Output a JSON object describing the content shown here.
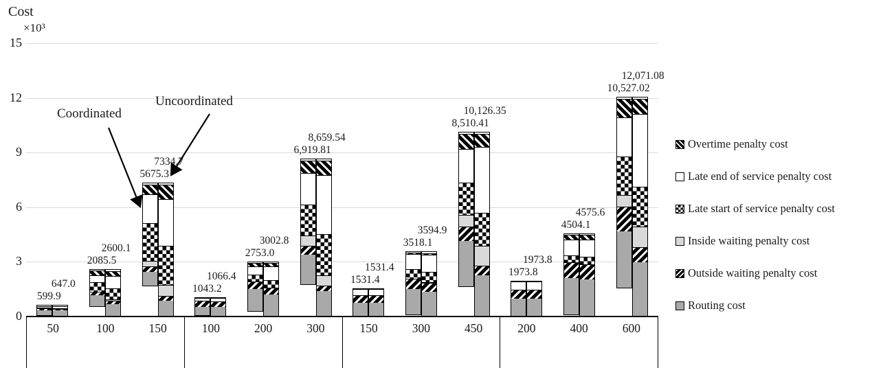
{
  "title": {
    "text": "Cost",
    "multiplier": "×10³"
  },
  "annotations": {
    "coordinated": "Coordinated",
    "uncoordinated": "Uncoordinated"
  },
  "y_axis": {
    "unit": "×10³",
    "max": 15000,
    "ticks": [
      0,
      3,
      6,
      9,
      12,
      15
    ],
    "tick_labels": [
      "0",
      "3",
      "6",
      "9",
      "12",
      "15"
    ]
  },
  "legend": [
    {
      "key": "overtime",
      "label": "Overtime penalty cost"
    },
    {
      "key": "late_end",
      "label": "Late end of service penalty cost"
    },
    {
      "key": "late_start",
      "label": "Late start of service penalty cost"
    },
    {
      "key": "inside",
      "label": "Inside waiting penalty cost"
    },
    {
      "key": "outside",
      "label": "Outside waiting penalty cost"
    },
    {
      "key": "routing",
      "label": "Routing cost"
    }
  ],
  "chart_data": {
    "type": "bar",
    "subtype": "grouped-stacked",
    "series_per_category": [
      "Coordinated",
      "Uncoordinated"
    ],
    "stack_order_bottom_to_top": [
      "routing",
      "outside",
      "inside",
      "late_start",
      "late_end",
      "overtime"
    ],
    "ylim": [
      0,
      15000
    ],
    "grid": "horizontal",
    "legend_position": "right",
    "groups": [
      {
        "categories": [
          {
            "label": "50",
            "coordinated": {
              "total": 599.9,
              "total_label": "599.9",
              "segments": {
                "routing": 270,
                "outside": 100,
                "inside": 0,
                "late_start": 60,
                "late_end": 130,
                "overtime": 39.9
              }
            },
            "uncoordinated": {
              "total": 647.0,
              "total_label": "647.0",
              "segments": {
                "routing": 300,
                "outside": 90,
                "inside": 0,
                "late_start": 70,
                "late_end": 150,
                "overtime": 37
              }
            }
          },
          {
            "label": "100",
            "coordinated": {
              "total": 2085.5,
              "total_label": "2085.5",
              "segments": {
                "routing": 610,
                "outside": 190,
                "inside": 0,
                "late_start": 560,
                "late_end": 420,
                "overtime": 305.5
              }
            },
            "uncoordinated": {
              "total": 2600.1,
              "total_label": "2600.1",
              "segments": {
                "routing": 640,
                "outside": 200,
                "inside": 100,
                "late_start": 660,
                "late_end": 700,
                "overtime": 300.1
              }
            }
          },
          {
            "label": "150",
            "coordinated": {
              "total": 5675.3,
              "total_label": "5675.3",
              "segments": {
                "routing": 760,
                "outside": 300,
                "inside": 340,
                "late_start": 2100,
                "late_end": 1630,
                "overtime": 545.3
              }
            },
            "uncoordinated": {
              "total": 7334.7,
              "total_label": "7334.7",
              "segments": {
                "routing": 830,
                "outside": 270,
                "inside": 640,
                "late_start": 2180,
                "late_end": 2600,
                "overtime": 814.7
              }
            }
          }
        ]
      },
      {
        "categories": [
          {
            "label": "100",
            "coordinated": {
              "total": 1043.2,
              "total_label": "1043.2",
              "segments": {
                "routing": 480,
                "outside": 310,
                "inside": 0,
                "late_start": 0,
                "late_end": 215,
                "overtime": 38.2
              }
            },
            "uncoordinated": {
              "total": 1066.4,
              "total_label": "1066.4",
              "segments": {
                "routing": 490,
                "outside": 310,
                "inside": 0,
                "late_start": 0,
                "late_end": 230,
                "overtime": 36.4
              }
            }
          },
          {
            "label": "200",
            "coordinated": {
              "total": 2753.0,
              "total_label": "2753.0",
              "segments": {
                "routing": 1230,
                "outside": 420,
                "inside": 0,
                "late_start": 400,
                "late_end": 500,
                "overtime": 203
              }
            },
            "uncoordinated": {
              "total": 3002.8,
              "total_label": "3002.8",
              "segments": {
                "routing": 1165,
                "outside": 375,
                "inside": 0,
                "late_start": 440,
                "late_end": 800,
                "overtime": 222.8
              }
            }
          },
          {
            "label": "300",
            "coordinated": {
              "total": 6919.81,
              "total_label": "6,919.81",
              "segments": {
                "routing": 1600,
                "outside": 500,
                "inside": 625,
                "late_start": 1700,
                "late_end": 1800,
                "overtime": 694.81
              }
            },
            "uncoordinated": {
              "total": 8659.54,
              "total_label": "8,659.54",
              "segments": {
                "routing": 1355,
                "outside": 290,
                "inside": 625,
                "late_start": 2300,
                "late_end": 3270,
                "overtime": 819.54
              }
            }
          }
        ]
      },
      {
        "categories": [
          {
            "label": "150",
            "coordinated": {
              "total": 1531.4,
              "total_label": "1531.4",
              "segments": {
                "routing": 715,
                "outside": 415,
                "inside": 0,
                "late_start": 0,
                "late_end": 360,
                "overtime": 41.4
              }
            },
            "uncoordinated": {
              "total": 1531.4,
              "total_label": "1531.4",
              "segments": {
                "routing": 715,
                "outside": 415,
                "inside": 0,
                "late_start": 0,
                "late_end": 360,
                "overtime": 41.4
              }
            }
          },
          {
            "label": "300",
            "coordinated": {
              "total": 3518.1,
              "total_label": "3518.1",
              "segments": {
                "routing": 1405,
                "outside": 540,
                "inside": 0,
                "late_start": 565,
                "late_end": 900,
                "overtime": 108.1
              }
            },
            "uncoordinated": {
              "total": 3594.9,
              "total_label": "3594.9",
              "segments": {
                "routing": 1315,
                "outside": 500,
                "inside": 60,
                "late_start": 625,
                "late_end": 985,
                "overtime": 109.9
              }
            }
          },
          {
            "label": "450",
            "coordinated": {
              "total": 8510.41,
              "total_label": "8,510.41",
              "segments": {
                "routing": 2490,
                "outside": 780,
                "inside": 690,
                "late_start": 1795,
                "late_end": 1885,
                "overtime": 870.41
              }
            },
            "uncoordinated": {
              "total": 10126.35,
              "total_label": "10,126.35",
              "segments": {
                "routing": 2235,
                "outside": 500,
                "inside": 1130,
                "late_start": 1880,
                "late_end": 3625,
                "overtime": 756.35
              }
            }
          }
        ]
      },
      {
        "categories": [
          {
            "label": "200",
            "coordinated": {
              "total": 1973.8,
              "total_label": "1973.8",
              "segments": {
                "routing": 950,
                "outside": 465,
                "inside": 0,
                "late_start": 0,
                "late_end": 510,
                "overtime": 48.8
              }
            },
            "uncoordinated": {
              "total": 1973.8,
              "total_label": "1973.8",
              "segments": {
                "routing": 950,
                "outside": 465,
                "inside": 0,
                "late_start": 0,
                "late_end": 510,
                "overtime": 48.8
              }
            }
          },
          {
            "label": "400",
            "coordinated": {
              "total": 4504.1,
              "total_label": "4504.1",
              "segments": {
                "routing": 2020,
                "outside": 840,
                "inside": 0,
                "late_start": 440,
                "late_end": 890,
                "overtime": 314.1
              }
            },
            "uncoordinated": {
              "total": 4575.6,
              "total_label": "4575.6",
              "segments": {
                "routing": 1980,
                "outside": 855,
                "inside": 0,
                "late_start": 430,
                "late_end": 1000,
                "overtime": 310.6
              }
            }
          },
          {
            "label": "600",
            "coordinated": {
              "total": 10527.02,
              "total_label": "10,527.02",
              "segments": {
                "routing": 3075,
                "outside": 1380,
                "inside": 690,
                "late_start": 2135,
                "late_end": 2190,
                "overtime": 1057.02
              }
            },
            "uncoordinated": {
              "total": 12071.08,
              "total_label": "12,071.08",
              "segments": {
                "routing": 2950,
                "outside": 815,
                "inside": 1190,
                "late_start": 2195,
                "late_end": 4040,
                "overtime": 881.08
              }
            }
          }
        ]
      }
    ]
  }
}
